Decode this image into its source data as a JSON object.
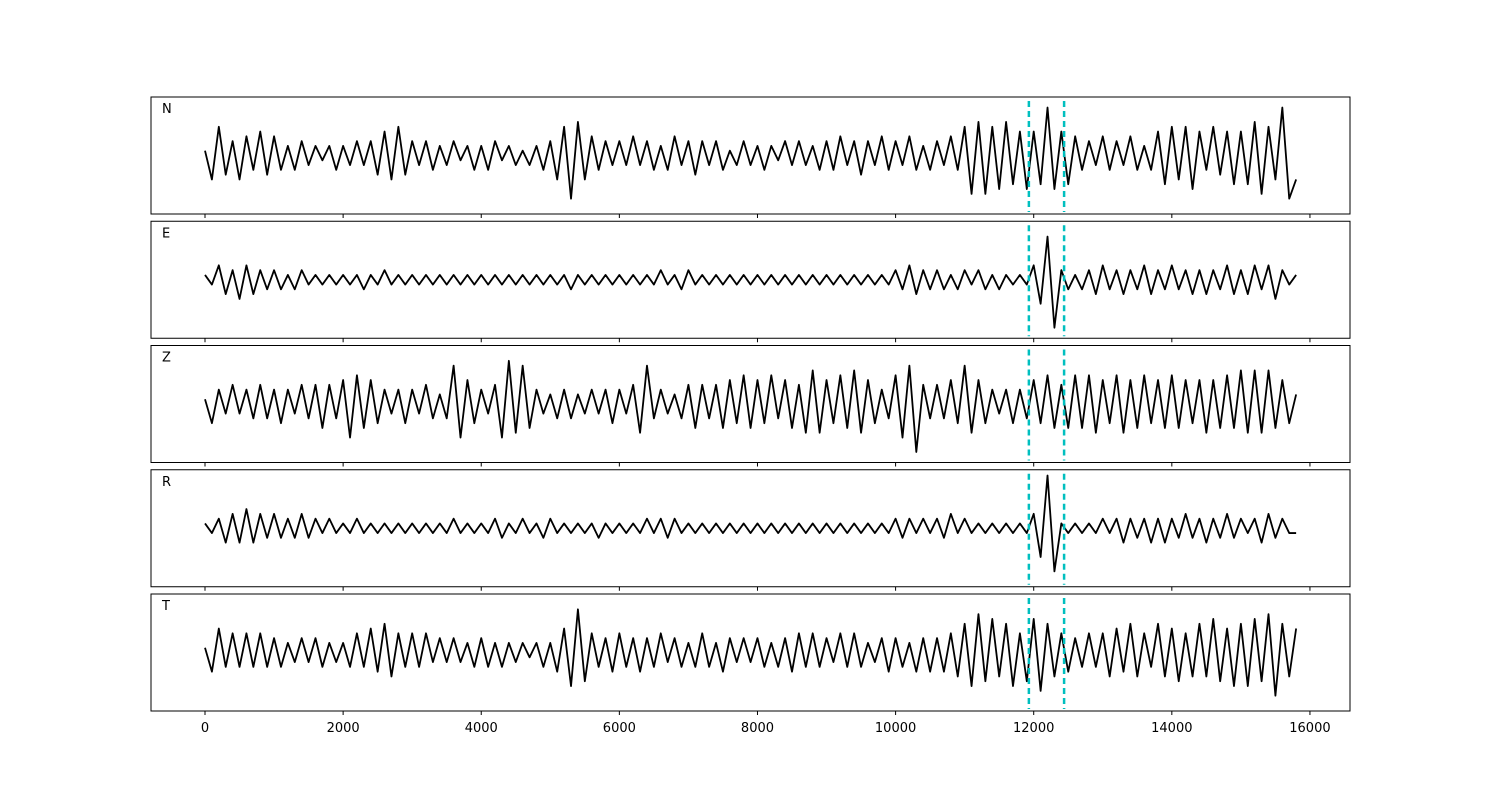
{
  "chart_data": {
    "type": "line",
    "x": [
      0,
      100,
      200,
      300,
      400,
      500,
      600,
      700,
      800,
      900,
      1000,
      1100,
      1200,
      1300,
      1400,
      1500,
      1600,
      1700,
      1800,
      1900,
      2000,
      2100,
      2200,
      2300,
      2400,
      2500,
      2600,
      2700,
      2800,
      2900,
      3000,
      3100,
      3200,
      3300,
      3400,
      3500,
      3600,
      3700,
      3800,
      3900,
      4000,
      4100,
      4200,
      4300,
      4400,
      4500,
      4600,
      4700,
      4800,
      4900,
      5000,
      5100,
      5200,
      5300,
      5400,
      5500,
      5600,
      5700,
      5800,
      5900,
      6000,
      6100,
      6200,
      6300,
      6400,
      6500,
      6600,
      6700,
      6800,
      6900,
      7000,
      7100,
      7200,
      7300,
      7400,
      7500,
      7600,
      7700,
      7800,
      7900,
      8000,
      8100,
      8200,
      8300,
      8400,
      8500,
      8600,
      8700,
      8800,
      8900,
      9000,
      9100,
      9200,
      9300,
      9400,
      9500,
      9600,
      9700,
      9800,
      9900,
      10000,
      10100,
      10200,
      10300,
      10400,
      10500,
      10600,
      10700,
      10800,
      10900,
      11000,
      11100,
      11200,
      11300,
      11400,
      11500,
      11600,
      11700,
      11800,
      11900,
      12000,
      12100,
      12200,
      12300,
      12400,
      12500,
      12600,
      12700,
      12800,
      12900,
      13000,
      13100,
      13200,
      13300,
      13400,
      13500,
      13600,
      13700,
      13800,
      13900,
      14000,
      14100,
      14200,
      14300,
      14400,
      14500,
      14600,
      14700,
      14800,
      14900,
      15000,
      15100,
      15200,
      15300,
      15400,
      15500,
      15600,
      15700,
      15800
    ],
    "xlim": [
      -782,
      16580
    ],
    "xticks": [
      0,
      2000,
      4000,
      6000,
      8000,
      10000,
      12000,
      14000,
      16000
    ],
    "ylim": [
      -1.22,
      1.22
    ],
    "vlines": {
      "values": [
        11930,
        12440
      ],
      "color": "#00bfbf",
      "style": "dashed"
    },
    "series": [
      {
        "name": "N",
        "color": "#000000",
        "values": [
          0.1,
          -0.5,
          0.6,
          -0.4,
          0.3,
          -0.5,
          0.4,
          -0.3,
          0.5,
          -0.4,
          0.4,
          -0.3,
          0.2,
          -0.3,
          0.3,
          -0.2,
          0.2,
          -0.1,
          0.2,
          -0.3,
          0.2,
          -0.2,
          0.3,
          -0.2,
          0.3,
          -0.4,
          0.5,
          -0.5,
          0.6,
          -0.4,
          0.3,
          -0.2,
          0.3,
          -0.3,
          0.2,
          -0.2,
          0.3,
          -0.1,
          0.2,
          -0.3,
          0.2,
          -0.3,
          0.3,
          -0.1,
          0.2,
          -0.2,
          0.1,
          -0.2,
          0.2,
          -0.3,
          0.3,
          -0.5,
          0.6,
          -0.9,
          0.7,
          -0.5,
          0.4,
          -0.3,
          0.3,
          -0.2,
          0.3,
          -0.2,
          0.4,
          -0.2,
          0.3,
          -0.3,
          0.2,
          -0.3,
          0.4,
          -0.2,
          0.3,
          -0.4,
          0.3,
          -0.2,
          0.3,
          -0.3,
          0.1,
          -0.2,
          0.3,
          -0.2,
          0.2,
          -0.3,
          0.2,
          -0.1,
          0.3,
          -0.2,
          0.3,
          -0.2,
          0.2,
          -0.3,
          0.3,
          -0.3,
          0.4,
          -0.2,
          0.3,
          -0.4,
          0.3,
          -0.2,
          0.4,
          -0.3,
          0.3,
          -0.2,
          0.4,
          -0.3,
          0.2,
          -0.3,
          0.3,
          -0.2,
          0.4,
          -0.3,
          0.6,
          -0.8,
          0.7,
          -0.8,
          0.6,
          -0.7,
          0.7,
          -0.6,
          0.5,
          -0.7,
          0.5,
          -0.6,
          1.0,
          -0.7,
          0.5,
          -0.6,
          0.4,
          -0.3,
          0.3,
          -0.2,
          0.4,
          -0.3,
          0.3,
          -0.2,
          0.4,
          -0.3,
          0.2,
          -0.3,
          0.5,
          -0.6,
          0.6,
          -0.5,
          0.6,
          -0.7,
          0.5,
          -0.3,
          0.6,
          -0.4,
          0.5,
          -0.6,
          0.5,
          -0.6,
          0.7,
          -0.8,
          0.6,
          -0.5,
          1.0,
          -0.9,
          -0.5
        ]
      },
      {
        "name": "E",
        "color": "#000000",
        "values": [
          0.1,
          -0.1,
          0.3,
          -0.3,
          0.2,
          -0.4,
          0.3,
          -0.3,
          0.2,
          -0.2,
          0.2,
          -0.2,
          0.1,
          -0.2,
          0.2,
          -0.1,
          0.1,
          -0.1,
          0.1,
          -0.1,
          0.1,
          -0.1,
          0.1,
          -0.2,
          0.1,
          -0.1,
          0.2,
          -0.1,
          0.1,
          -0.1,
          0.1,
          -0.1,
          0.1,
          -0.1,
          0.1,
          -0.1,
          0.1,
          -0.1,
          0.1,
          -0.1,
          0.1,
          -0.1,
          0.1,
          -0.1,
          0.1,
          -0.1,
          0.1,
          -0.1,
          0.1,
          -0.1,
          0.1,
          -0.1,
          0.1,
          -0.2,
          0.1,
          -0.1,
          0.1,
          -0.1,
          0.1,
          -0.1,
          0.1,
          -0.1,
          0.1,
          -0.1,
          0.1,
          -0.1,
          0.2,
          -0.1,
          0.1,
          -0.2,
          0.2,
          -0.1,
          0.1,
          -0.1,
          0.1,
          -0.1,
          0.1,
          -0.1,
          0.1,
          -0.1,
          0.1,
          -0.1,
          0.1,
          -0.1,
          0.1,
          -0.1,
          0.1,
          -0.1,
          0.1,
          -0.1,
          0.1,
          -0.1,
          0.1,
          -0.1,
          0.1,
          -0.1,
          0.1,
          -0.1,
          0.1,
          -0.1,
          0.2,
          -0.2,
          0.3,
          -0.3,
          0.2,
          -0.2,
          0.2,
          -0.2,
          0.1,
          -0.2,
          0.2,
          -0.1,
          0.2,
          -0.2,
          0.1,
          -0.2,
          0.1,
          -0.1,
          0.1,
          -0.1,
          0.3,
          -0.5,
          0.9,
          -1.0,
          0.2,
          -0.2,
          0.1,
          -0.2,
          0.2,
          -0.3,
          0.3,
          -0.2,
          0.2,
          -0.3,
          0.2,
          -0.2,
          0.3,
          -0.3,
          0.2,
          -0.2,
          0.3,
          -0.2,
          0.2,
          -0.3,
          0.2,
          -0.3,
          0.2,
          -0.2,
          0.3,
          -0.3,
          0.2,
          -0.3,
          0.3,
          -0.2,
          0.3,
          -0.4,
          0.2,
          -0.1,
          0.1
        ]
      },
      {
        "name": "Z",
        "color": "#000000",
        "values": [
          0.1,
          -0.4,
          0.3,
          -0.2,
          0.4,
          -0.2,
          0.3,
          -0.3,
          0.4,
          -0.3,
          0.3,
          -0.4,
          0.3,
          -0.2,
          0.4,
          -0.3,
          0.4,
          -0.5,
          0.4,
          -0.3,
          0.5,
          -0.7,
          0.6,
          -0.5,
          0.5,
          -0.4,
          0.3,
          -0.2,
          0.3,
          -0.4,
          0.3,
          -0.2,
          0.4,
          -0.3,
          0.2,
          -0.3,
          0.8,
          -0.7,
          0.5,
          -0.4,
          0.3,
          -0.2,
          0.4,
          -0.7,
          0.9,
          -0.6,
          0.8,
          -0.5,
          0.3,
          -0.2,
          0.2,
          -0.3,
          0.3,
          -0.3,
          0.2,
          -0.2,
          0.3,
          -0.2,
          0.3,
          -0.4,
          0.3,
          -0.2,
          0.4,
          -0.6,
          0.8,
          -0.3,
          0.3,
          -0.2,
          0.2,
          -0.3,
          0.4,
          -0.5,
          0.4,
          -0.3,
          0.4,
          -0.5,
          0.5,
          -0.4,
          0.6,
          -0.5,
          0.5,
          -0.4,
          0.6,
          -0.3,
          0.5,
          -0.5,
          0.4,
          -0.6,
          0.7,
          -0.6,
          0.5,
          -0.4,
          0.6,
          -0.5,
          0.7,
          -0.6,
          0.5,
          -0.4,
          0.3,
          -0.3,
          0.6,
          -0.7,
          0.8,
          -1.0,
          0.4,
          -0.3,
          0.4,
          -0.3,
          0.5,
          -0.4,
          0.8,
          -0.6,
          0.5,
          -0.4,
          0.3,
          -0.2,
          0.3,
          -0.4,
          0.3,
          -0.3,
          0.5,
          -0.4,
          0.6,
          -0.5,
          0.4,
          -0.5,
          0.6,
          -0.5,
          0.6,
          -0.6,
          0.5,
          -0.4,
          0.6,
          -0.6,
          0.5,
          -0.5,
          0.6,
          -0.4,
          0.5,
          -0.5,
          0.6,
          -0.5,
          0.5,
          -0.4,
          0.5,
          -0.6,
          0.5,
          -0.5,
          0.6,
          -0.5,
          0.7,
          -0.6,
          0.7,
          -0.6,
          0.7,
          -0.5,
          0.5,
          -0.4,
          0.2
        ]
      },
      {
        "name": "R",
        "color": "#000000",
        "values": [
          0.1,
          -0.1,
          0.2,
          -0.3,
          0.3,
          -0.3,
          0.4,
          -0.3,
          0.3,
          -0.2,
          0.3,
          -0.2,
          0.2,
          -0.2,
          0.3,
          -0.2,
          0.2,
          -0.1,
          0.2,
          -0.1,
          0.1,
          -0.1,
          0.2,
          -0.1,
          0.1,
          -0.1,
          0.1,
          -0.1,
          0.1,
          -0.1,
          0.1,
          -0.1,
          0.1,
          -0.1,
          0.1,
          -0.1,
          0.2,
          -0.1,
          0.1,
          -0.1,
          0.1,
          -0.1,
          0.2,
          -0.2,
          0.1,
          -0.1,
          0.2,
          -0.1,
          0.1,
          -0.2,
          0.2,
          -0.1,
          0.1,
          -0.1,
          0.1,
          -0.1,
          0.1,
          -0.2,
          0.1,
          -0.1,
          0.1,
          -0.1,
          0.1,
          -0.1,
          0.2,
          -0.1,
          0.2,
          -0.2,
          0.2,
          -0.1,
          0.1,
          -0.1,
          0.1,
          -0.1,
          0.1,
          -0.1,
          0.1,
          -0.1,
          0.1,
          -0.1,
          0.1,
          -0.1,
          0.1,
          -0.1,
          0.1,
          -0.1,
          0.1,
          -0.1,
          0.1,
          -0.1,
          0.1,
          -0.1,
          0.1,
          -0.1,
          0.1,
          -0.1,
          0.1,
          -0.1,
          0.1,
          -0.1,
          0.2,
          -0.2,
          0.2,
          -0.1,
          0.2,
          -0.1,
          0.2,
          -0.2,
          0.3,
          -0.1,
          0.2,
          -0.1,
          0.1,
          -0.1,
          0.1,
          -0.1,
          0.1,
          -0.1,
          0.1,
          -0.1,
          0.3,
          -0.6,
          1.1,
          -0.9,
          0.1,
          -0.1,
          0.1,
          -0.1,
          0.1,
          -0.1,
          0.2,
          -0.1,
          0.2,
          -0.3,
          0.2,
          -0.2,
          0.2,
          -0.3,
          0.2,
          -0.3,
          0.2,
          -0.2,
          0.3,
          -0.2,
          0.2,
          -0.3,
          0.2,
          -0.2,
          0.3,
          -0.2,
          0.2,
          -0.1,
          0.2,
          -0.3,
          0.3,
          -0.2,
          0.2,
          -0.1,
          -0.1
        ]
      },
      {
        "name": "T",
        "color": "#000000",
        "values": [
          0.1,
          -0.4,
          0.5,
          -0.3,
          0.4,
          -0.3,
          0.4,
          -0.3,
          0.4,
          -0.3,
          0.3,
          -0.3,
          0.2,
          -0.2,
          0.3,
          -0.2,
          0.3,
          -0.3,
          0.2,
          -0.2,
          0.2,
          -0.3,
          0.4,
          -0.3,
          0.5,
          -0.4,
          0.6,
          -0.5,
          0.4,
          -0.3,
          0.4,
          -0.3,
          0.4,
          -0.2,
          0.3,
          -0.2,
          0.3,
          -0.2,
          0.2,
          -0.3,
          0.3,
          -0.3,
          0.2,
          -0.3,
          0.2,
          -0.2,
          0.2,
          -0.1,
          0.2,
          -0.3,
          0.2,
          -0.4,
          0.5,
          -0.7,
          0.9,
          -0.6,
          0.4,
          -0.3,
          0.3,
          -0.4,
          0.4,
          -0.3,
          0.3,
          -0.4,
          0.3,
          -0.3,
          0.4,
          -0.2,
          0.3,
          -0.3,
          0.2,
          -0.3,
          0.4,
          -0.3,
          0.2,
          -0.4,
          0.3,
          -0.2,
          0.3,
          -0.2,
          0.3,
          -0.3,
          0.2,
          -0.3,
          0.3,
          -0.4,
          0.4,
          -0.3,
          0.4,
          -0.3,
          0.3,
          -0.2,
          0.4,
          -0.3,
          0.4,
          -0.3,
          0.2,
          -0.2,
          0.3,
          -0.4,
          0.3,
          -0.3,
          0.2,
          -0.4,
          0.3,
          -0.4,
          0.3,
          -0.4,
          0.4,
          -0.5,
          0.6,
          -0.7,
          0.8,
          -0.6,
          0.7,
          -0.5,
          0.6,
          -0.7,
          0.4,
          -0.6,
          0.7,
          -0.8,
          0.6,
          -0.5,
          0.4,
          -0.4,
          0.3,
          -0.3,
          0.4,
          -0.3,
          0.4,
          -0.5,
          0.5,
          -0.4,
          0.6,
          -0.5,
          0.4,
          -0.3,
          0.6,
          -0.5,
          0.5,
          -0.6,
          0.4,
          -0.5,
          0.6,
          -0.5,
          0.7,
          -0.6,
          0.5,
          -0.7,
          0.6,
          -0.7,
          0.7,
          -0.6,
          0.8,
          -0.9,
          0.6,
          -0.5,
          0.5
        ]
      }
    ]
  }
}
